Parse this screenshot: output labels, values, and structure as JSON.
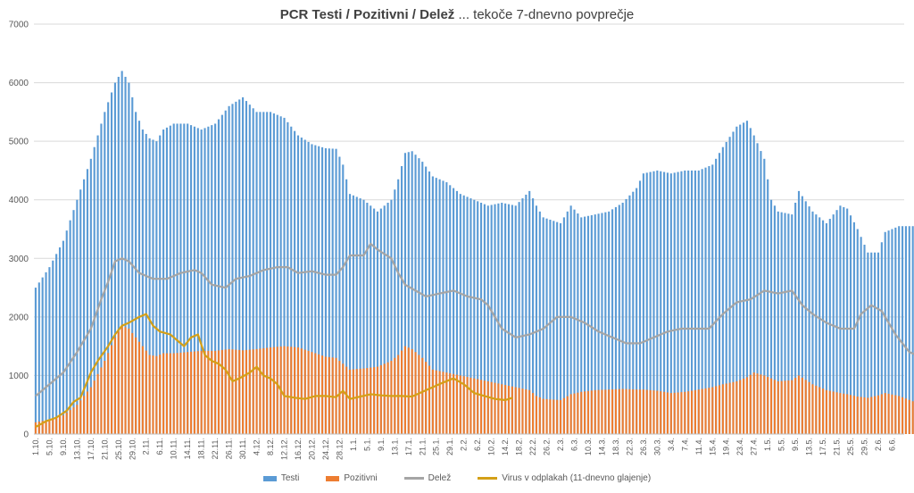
{
  "title": {
    "bold": "PCR Testi / Pozitivni / Delež",
    "normal": " ... tekoče 7-dnevno povprečje"
  },
  "colors": {
    "testi": "#5b9bd5",
    "pozitivni": "#ed7d31",
    "delez": "#a5a5a5",
    "virus": "#d4a017",
    "grid": "#d9d9d9",
    "axis_text": "#595959"
  },
  "chart_data": {
    "type": "bar",
    "title": "PCR Testi / Pozitivni / Delež ... tekoče 7-dnevno povprečje",
    "xlabel": "",
    "ylabel": "",
    "ylim": [
      0,
      7000
    ],
    "yticks": [
      "0",
      "1000",
      "2000",
      "3000",
      "4000",
      "5000",
      "6000",
      "7000"
    ],
    "grid": true,
    "legend_position": "bottom",
    "x_tick_labels": [
      "1.10.",
      "5.10.",
      "9.10.",
      "13.10.",
      "17.10.",
      "21.10.",
      "25.10.",
      "29.10.",
      "2.11.",
      "6.11.",
      "10.11.",
      "14.11.",
      "18.11.",
      "22.11.",
      "26.11.",
      "30.11.",
      "4.12.",
      "8.12.",
      "12.12.",
      "16.12.",
      "20.12.",
      "24.12.",
      "28.12.",
      "1.1.",
      "5.1.",
      "9.1.",
      "13.1.",
      "17.1.",
      "21.1.",
      "25.1.",
      "29.1.",
      "2.2.",
      "6.2.",
      "10.2.",
      "14.2.",
      "18.2.",
      "22.2.",
      "26.2.",
      "2.3.",
      "6.3.",
      "10.3.",
      "14.3.",
      "18.3.",
      "22.3.",
      "26.3.",
      "30.3.",
      "3.4.",
      "7.4.",
      "11.4.",
      "15.4.",
      "19.4.",
      "23.4.",
      "27.4.",
      "1.5.",
      "5.5.",
      "9.5.",
      "13.5.",
      "17.5.",
      "21.5.",
      "25.5.",
      "29.5.",
      "2.6.",
      "6.6."
    ],
    "tick_step_days": 4,
    "series": [
      {
        "name": "Testi",
        "kind": "bar",
        "anchors": [
          [
            0,
            2500
          ],
          [
            4,
            2850
          ],
          [
            8,
            3300
          ],
          [
            12,
            4000
          ],
          [
            16,
            4700
          ],
          [
            20,
            5500
          ],
          [
            23,
            6000
          ],
          [
            25,
            6200
          ],
          [
            27,
            6000
          ],
          [
            29,
            5500
          ],
          [
            31,
            5200
          ],
          [
            33,
            5050
          ],
          [
            35,
            5000
          ],
          [
            37,
            5200
          ],
          [
            40,
            5300
          ],
          [
            44,
            5300
          ],
          [
            48,
            5200
          ],
          [
            52,
            5300
          ],
          [
            56,
            5600
          ],
          [
            60,
            5750
          ],
          [
            64,
            5500
          ],
          [
            68,
            5500
          ],
          [
            72,
            5400
          ],
          [
            76,
            5100
          ],
          [
            80,
            4950
          ],
          [
            84,
            4880
          ],
          [
            87,
            4870
          ],
          [
            89,
            4600
          ],
          [
            91,
            4100
          ],
          [
            95,
            4000
          ],
          [
            99,
            3800
          ],
          [
            103,
            4000
          ],
          [
            105,
            4350
          ],
          [
            107,
            4800
          ],
          [
            109,
            4830
          ],
          [
            112,
            4650
          ],
          [
            115,
            4400
          ],
          [
            119,
            4300
          ],
          [
            123,
            4100
          ],
          [
            127,
            4000
          ],
          [
            131,
            3900
          ],
          [
            135,
            3950
          ],
          [
            139,
            3900
          ],
          [
            143,
            4150
          ],
          [
            145,
            3900
          ],
          [
            147,
            3700
          ],
          [
            152,
            3600
          ],
          [
            155,
            3900
          ],
          [
            158,
            3700
          ],
          [
            162,
            3750
          ],
          [
            166,
            3800
          ],
          [
            170,
            3950
          ],
          [
            174,
            4200
          ],
          [
            176,
            4450
          ],
          [
            180,
            4500
          ],
          [
            184,
            4450
          ],
          [
            188,
            4500
          ],
          [
            192,
            4500
          ],
          [
            196,
            4600
          ],
          [
            199,
            4900
          ],
          [
            203,
            5250
          ],
          [
            206,
            5350
          ],
          [
            208,
            5100
          ],
          [
            211,
            4700
          ],
          [
            213,
            4000
          ],
          [
            215,
            3800
          ],
          [
            219,
            3750
          ],
          [
            221,
            4150
          ],
          [
            225,
            3800
          ],
          [
            229,
            3600
          ],
          [
            233,
            3900
          ],
          [
            235,
            3850
          ],
          [
            238,
            3500
          ],
          [
            241,
            3100
          ],
          [
            244,
            3100
          ],
          [
            246,
            3450
          ],
          [
            250,
            3550
          ],
          [
            254,
            3550
          ],
          [
            258,
            3600
          ],
          [
            262,
            3500
          ],
          [
            266,
            3400
          ],
          [
            269,
            3350
          ]
        ]
      },
      {
        "name": "Pozitivni",
        "kind": "bar",
        "anchors": [
          [
            0,
            200
          ],
          [
            4,
            250
          ],
          [
            8,
            320
          ],
          [
            12,
            500
          ],
          [
            16,
            800
          ],
          [
            20,
            1250
          ],
          [
            23,
            1650
          ],
          [
            25,
            1850
          ],
          [
            27,
            1800
          ],
          [
            29,
            1650
          ],
          [
            31,
            1500
          ],
          [
            33,
            1350
          ],
          [
            35,
            1330
          ],
          [
            37,
            1380
          ],
          [
            40,
            1380
          ],
          [
            44,
            1400
          ],
          [
            48,
            1420
          ],
          [
            52,
            1420
          ],
          [
            56,
            1450
          ],
          [
            60,
            1430
          ],
          [
            64,
            1450
          ],
          [
            68,
            1480
          ],
          [
            72,
            1500
          ],
          [
            76,
            1480
          ],
          [
            80,
            1400
          ],
          [
            84,
            1320
          ],
          [
            87,
            1300
          ],
          [
            89,
            1200
          ],
          [
            91,
            1100
          ],
          [
            95,
            1120
          ],
          [
            99,
            1150
          ],
          [
            103,
            1250
          ],
          [
            105,
            1350
          ],
          [
            107,
            1500
          ],
          [
            109,
            1450
          ],
          [
            112,
            1300
          ],
          [
            115,
            1100
          ],
          [
            119,
            1050
          ],
          [
            123,
            1000
          ],
          [
            127,
            950
          ],
          [
            131,
            900
          ],
          [
            135,
            850
          ],
          [
            139,
            800
          ],
          [
            143,
            750
          ],
          [
            145,
            650
          ],
          [
            147,
            600
          ],
          [
            152,
            580
          ],
          [
            155,
            680
          ],
          [
            158,
            720
          ],
          [
            162,
            750
          ],
          [
            166,
            760
          ],
          [
            170,
            770
          ],
          [
            174,
            760
          ],
          [
            176,
            760
          ],
          [
            180,
            740
          ],
          [
            184,
            700
          ],
          [
            188,
            720
          ],
          [
            192,
            760
          ],
          [
            196,
            800
          ],
          [
            199,
            850
          ],
          [
            203,
            900
          ],
          [
            206,
            970
          ],
          [
            208,
            1050
          ],
          [
            211,
            1000
          ],
          [
            213,
            950
          ],
          [
            215,
            900
          ],
          [
            219,
            920
          ],
          [
            221,
            1000
          ],
          [
            225,
            850
          ],
          [
            229,
            750
          ],
          [
            233,
            700
          ],
          [
            235,
            680
          ],
          [
            238,
            640
          ],
          [
            241,
            620
          ],
          [
            244,
            660
          ],
          [
            246,
            700
          ],
          [
            250,
            650
          ],
          [
            254,
            560
          ],
          [
            258,
            500
          ],
          [
            262,
            460
          ],
          [
            266,
            380
          ],
          [
            269,
            310
          ]
        ]
      },
      {
        "name": "Delež",
        "kind": "line",
        "anchors": [
          [
            0,
            650
          ],
          [
            4,
            850
          ],
          [
            8,
            1050
          ],
          [
            12,
            1400
          ],
          [
            16,
            1800
          ],
          [
            19,
            2300
          ],
          [
            21,
            2600
          ],
          [
            23,
            2950
          ],
          [
            25,
            3000
          ],
          [
            27,
            2950
          ],
          [
            30,
            2750
          ],
          [
            34,
            2650
          ],
          [
            38,
            2650
          ],
          [
            42,
            2750
          ],
          [
            46,
            2800
          ],
          [
            48,
            2750
          ],
          [
            51,
            2550
          ],
          [
            55,
            2500
          ],
          [
            58,
            2650
          ],
          [
            62,
            2700
          ],
          [
            66,
            2800
          ],
          [
            70,
            2850
          ],
          [
            73,
            2850
          ],
          [
            76,
            2750
          ],
          [
            80,
            2780
          ],
          [
            84,
            2720
          ],
          [
            87,
            2720
          ],
          [
            89,
            2850
          ],
          [
            91,
            3050
          ],
          [
            95,
            3050
          ],
          [
            97,
            3250
          ],
          [
            99,
            3150
          ],
          [
            103,
            3000
          ],
          [
            105,
            2750
          ],
          [
            107,
            2550
          ],
          [
            110,
            2450
          ],
          [
            113,
            2350
          ],
          [
            117,
            2400
          ],
          [
            121,
            2450
          ],
          [
            125,
            2350
          ],
          [
            129,
            2300
          ],
          [
            131,
            2200
          ],
          [
            135,
            1800
          ],
          [
            139,
            1650
          ],
          [
            143,
            1700
          ],
          [
            147,
            1800
          ],
          [
            151,
            2000
          ],
          [
            155,
            2000
          ],
          [
            159,
            1900
          ],
          [
            163,
            1750
          ],
          [
            167,
            1650
          ],
          [
            171,
            1550
          ],
          [
            175,
            1550
          ],
          [
            179,
            1650
          ],
          [
            183,
            1750
          ],
          [
            187,
            1800
          ],
          [
            191,
            1800
          ],
          [
            195,
            1800
          ],
          [
            199,
            2050
          ],
          [
            203,
            2250
          ],
          [
            207,
            2300
          ],
          [
            211,
            2450
          ],
          [
            215,
            2400
          ],
          [
            219,
            2450
          ],
          [
            222,
            2200
          ],
          [
            225,
            2050
          ],
          [
            229,
            1900
          ],
          [
            233,
            1800
          ],
          [
            237,
            1800
          ],
          [
            239,
            2050
          ],
          [
            242,
            2200
          ],
          [
            245,
            2100
          ],
          [
            249,
            1700
          ],
          [
            253,
            1400
          ],
          [
            257,
            1300
          ],
          [
            261,
            1200
          ],
          [
            265,
            1000
          ],
          [
            269,
            920
          ]
        ]
      },
      {
        "name": "Virus v odplakah (11-dnevno glajenje)",
        "kind": "line",
        "anchors": [
          [
            0,
            120
          ],
          [
            3,
            220
          ],
          [
            6,
            280
          ],
          [
            9,
            400
          ],
          [
            11,
            550
          ],
          [
            13,
            620
          ],
          [
            16,
            1050
          ],
          [
            18,
            1250
          ],
          [
            21,
            1500
          ],
          [
            23,
            1700
          ],
          [
            25,
            1850
          ],
          [
            27,
            1900
          ],
          [
            30,
            2000
          ],
          [
            32,
            2050
          ],
          [
            34,
            1850
          ],
          [
            36,
            1750
          ],
          [
            39,
            1700
          ],
          [
            41,
            1600
          ],
          [
            43,
            1500
          ],
          [
            45,
            1650
          ],
          [
            47,
            1700
          ],
          [
            49,
            1350
          ],
          [
            51,
            1250
          ],
          [
            53,
            1200
          ],
          [
            55,
            1100
          ],
          [
            57,
            900
          ],
          [
            59,
            950
          ],
          [
            62,
            1050
          ],
          [
            64,
            1150
          ],
          [
            66,
            1000
          ],
          [
            68,
            950
          ],
          [
            70,
            850
          ],
          [
            72,
            650
          ],
          [
            75,
            620
          ],
          [
            78,
            600
          ],
          [
            81,
            650
          ],
          [
            84,
            650
          ],
          [
            87,
            630
          ],
          [
            89,
            740
          ],
          [
            91,
            600
          ],
          [
            94,
            640
          ],
          [
            97,
            680
          ],
          [
            100,
            660
          ],
          [
            103,
            650
          ],
          [
            106,
            650
          ],
          [
            109,
            640
          ],
          [
            112,
            720
          ],
          [
            115,
            800
          ],
          [
            118,
            880
          ],
          [
            121,
            950
          ],
          [
            124,
            850
          ],
          [
            127,
            700
          ],
          [
            130,
            650
          ],
          [
            133,
            600
          ],
          [
            136,
            580
          ],
          [
            138,
            620
          ]
        ]
      }
    ]
  },
  "legend": {
    "items": [
      {
        "label": "Testi",
        "type": "box"
      },
      {
        "label": "Pozitivni",
        "type": "box"
      },
      {
        "label": "Delež",
        "type": "line"
      },
      {
        "label": "Virus v odplakah (11-dnevno glajenje)",
        "type": "line"
      }
    ]
  }
}
